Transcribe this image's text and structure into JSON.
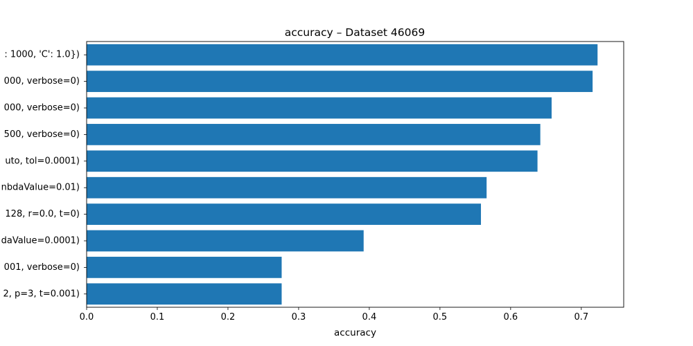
{
  "chart_data": {
    "type": "bar",
    "orientation": "horizontal",
    "title": "accuracy – Dataset 46069",
    "xlabel": "accuracy",
    "ylabel": "",
    "xlim": [
      0,
      0.76
    ],
    "xticks": [
      "0.0",
      "0.1",
      "0.2",
      "0.3",
      "0.4",
      "0.5",
      "0.6",
      "0.7"
    ],
    "grid": false,
    "legend": "none",
    "bar_color": "#1f77b4",
    "categories": [
      ": 1000, 'C': 1.0})",
      "000, verbose=0)",
      "000, verbose=0)",
      "500, verbose=0)",
      "uto, tol=0.0001)",
      "nbdaValue=0.01)",
      "128, r=0.0, t=0)",
      "daValue=0.0001)",
      "001, verbose=0)",
      "2, p=3, t=0.001)"
    ],
    "values": [
      0.723,
      0.716,
      0.658,
      0.642,
      0.638,
      0.566,
      0.558,
      0.392,
      0.276,
      0.276
    ]
  }
}
